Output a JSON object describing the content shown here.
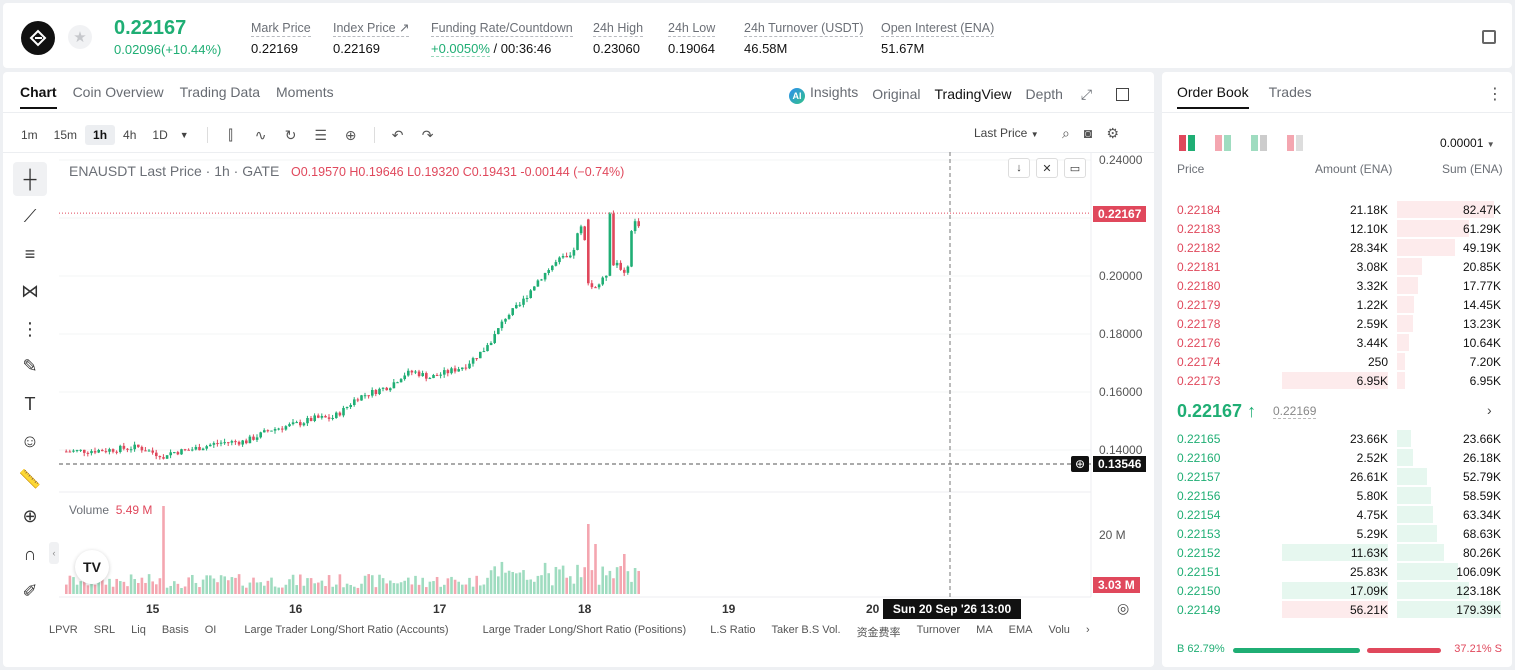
{
  "header": {
    "last_price": "0.22167",
    "change": "0.02096(+10.44%)",
    "stats": [
      {
        "label": "Mark Price",
        "value": "0.22169"
      },
      {
        "label": "Index Price ↗",
        "value": "0.22169"
      },
      {
        "label": "Funding Rate/Countdown",
        "value_green": "+0.0050%",
        "value": " / 00:36:46"
      },
      {
        "label": "24h High",
        "value": "0.23060"
      },
      {
        "label": "24h Low",
        "value": "0.19064"
      },
      {
        "label": "24h Turnover (USDT)",
        "value": "46.58M"
      },
      {
        "label": "Open Interest (ENA)",
        "value": "51.67M"
      }
    ]
  },
  "chart_tabs": [
    "Chart",
    "Coin Overview",
    "Trading Data",
    "Moments"
  ],
  "view_tabs": {
    "insights": "Insights",
    "original": "Original",
    "tradingview": "TradingView",
    "depth": "Depth"
  },
  "intervals": [
    "1m",
    "15m",
    "1h",
    "4h",
    "1D"
  ],
  "price_type": "Last Price",
  "ohlc": {
    "title": "ENAUSDT Last Price · 1h · GATE",
    "o": "0.19570",
    "h": "0.19646",
    "l": "0.19320",
    "c": "0.19431",
    "chg": "-0.00144 (−0.74%)"
  },
  "volume": {
    "label": "Volume",
    "value": "5.49 M"
  },
  "price_axis": [
    "0.24000",
    "0.20000",
    "0.18000",
    "0.16000",
    "0.14000"
  ],
  "price_tags": {
    "current": "0.22167",
    "crosshair": "0.13546",
    "volume": "3.03 M",
    "vol_axis": "20 M"
  },
  "x_axis": [
    "15",
    "16",
    "17",
    "18",
    "19",
    "20"
  ],
  "crosshair_time": "Sun 20 Sep '26   13:00",
  "indicators": [
    "LPVR",
    "SRL",
    "Liq",
    "Basis",
    "OI",
    "Large Trader Long/Short Ratio (Accounts)",
    "Large Trader Long/Short Ratio (Positions)",
    "L.S Ratio",
    "Taker B.S Vol.",
    "资金费率",
    "Turnover",
    "MA",
    "EMA",
    "Volu"
  ],
  "orderbook": {
    "tabs": [
      "Order Book",
      "Trades"
    ],
    "precision": "0.00001",
    "headers": {
      "price": "Price",
      "amount": "Amount (ENA)",
      "sum": "Sum (ENA)"
    },
    "asks": [
      {
        "price": "0.22184",
        "amount": "21.18K",
        "sum": "82.47K",
        "depth": 0.93,
        "amt": 0
      },
      {
        "price": "0.22183",
        "amount": "12.10K",
        "sum": "61.29K",
        "depth": 0.69,
        "amt": 0
      },
      {
        "price": "0.22182",
        "amount": "28.34K",
        "sum": "49.19K",
        "depth": 0.56,
        "amt": 0
      },
      {
        "price": "0.22181",
        "amount": "3.08K",
        "sum": "20.85K",
        "depth": 0.24,
        "amt": 0
      },
      {
        "price": "0.22180",
        "amount": "3.32K",
        "sum": "17.77K",
        "depth": 0.2,
        "amt": 0
      },
      {
        "price": "0.22179",
        "amount": "1.22K",
        "sum": "14.45K",
        "depth": 0.16,
        "amt": 0
      },
      {
        "price": "0.22178",
        "amount": "2.59K",
        "sum": "13.23K",
        "depth": 0.15,
        "amt": 0
      },
      {
        "price": "0.22176",
        "amount": "3.44K",
        "sum": "10.64K",
        "depth": 0.12,
        "amt": 0
      },
      {
        "price": "0.22174",
        "amount": "250",
        "sum": "7.20K",
        "depth": 0.08,
        "amt": 0
      },
      {
        "price": "0.22173",
        "amount": "6.95K",
        "sum": "6.95K",
        "depth": 0.08,
        "amt": 1
      }
    ],
    "mid_price": "0.22167 ↑",
    "mid_ref": "0.22169",
    "bids": [
      {
        "price": "0.22165",
        "amount": "23.66K",
        "sum": "23.66K",
        "depth": 0.13,
        "amt": 0
      },
      {
        "price": "0.22160",
        "amount": "2.52K",
        "sum": "26.18K",
        "depth": 0.15,
        "amt": 0
      },
      {
        "price": "0.22157",
        "amount": "26.61K",
        "sum": "52.79K",
        "depth": 0.29,
        "amt": 0
      },
      {
        "price": "0.22156",
        "amount": "5.80K",
        "sum": "58.59K",
        "depth": 0.33,
        "amt": 0
      },
      {
        "price": "0.22154",
        "amount": "4.75K",
        "sum": "63.34K",
        "depth": 0.35,
        "amt": 0
      },
      {
        "price": "0.22153",
        "amount": "5.29K",
        "sum": "68.63K",
        "depth": 0.38,
        "amt": 0
      },
      {
        "price": "0.22152",
        "amount": "11.63K",
        "sum": "80.26K",
        "depth": 0.45,
        "amt": 1
      },
      {
        "price": "0.22151",
        "amount": "25.83K",
        "sum": "106.09K",
        "depth": 0.59,
        "amt": 0
      },
      {
        "price": "0.22150",
        "amount": "17.09K",
        "sum": "123.18K",
        "depth": 0.69,
        "amt": 1
      },
      {
        "price": "0.22149",
        "amount": "56.21K",
        "sum": "179.39K",
        "depth": 1.0,
        "amt": 2
      }
    ],
    "buy_ratio": "B 62.79%",
    "sell_ratio": "37.21% S"
  },
  "colors": {
    "up": "#1fae74",
    "down": "#e0485c",
    "up_vol": "#9fdcc0",
    "down_vol": "#f4a6b0"
  }
}
